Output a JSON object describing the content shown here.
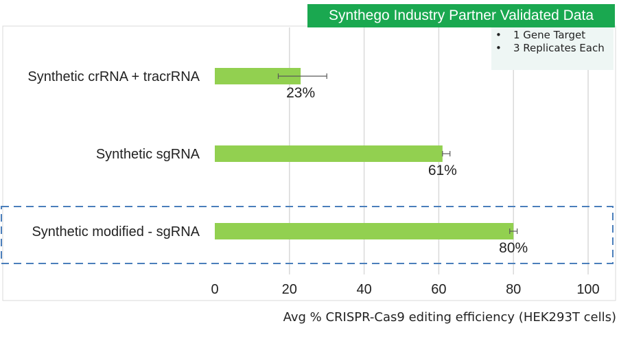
{
  "banner": {
    "text": "Synthego Industry Partner Validated Data"
  },
  "notes": {
    "items": [
      "1 Gene Target",
      "3 Replicates Each"
    ],
    "bullet": "•"
  },
  "chart_data": {
    "type": "bar",
    "orientation": "horizontal",
    "title": "",
    "xlabel": "Avg % CRISPR-Cas9 editing efficiency (HEK293T cells)",
    "ylabel": "",
    "xlim": [
      0,
      100
    ],
    "xticks": [
      "0",
      "20",
      "40",
      "60",
      "80",
      "100"
    ],
    "xtick_values": [
      0,
      20,
      40,
      60,
      80,
      100
    ],
    "categories": [
      "Synthetic crRNA + tracrRNA",
      "Synthetic sgRNA",
      "Synthetic modified - sgRNA"
    ],
    "values": [
      23,
      61,
      80
    ],
    "error_low": [
      17,
      61,
      79
    ],
    "error_high": [
      30,
      63,
      81
    ],
    "data_labels": [
      "23%",
      "61%",
      "80%"
    ],
    "grid": true,
    "highlighted_category": "Synthetic modified - sgRNA",
    "colors": {
      "bar": "#92d050",
      "grid": "#d9d9d9",
      "error_bar": "#595959",
      "highlight_border": "#4a7ebb",
      "banner": "#1aa850",
      "notes_bg": "#eef6f4"
    }
  }
}
